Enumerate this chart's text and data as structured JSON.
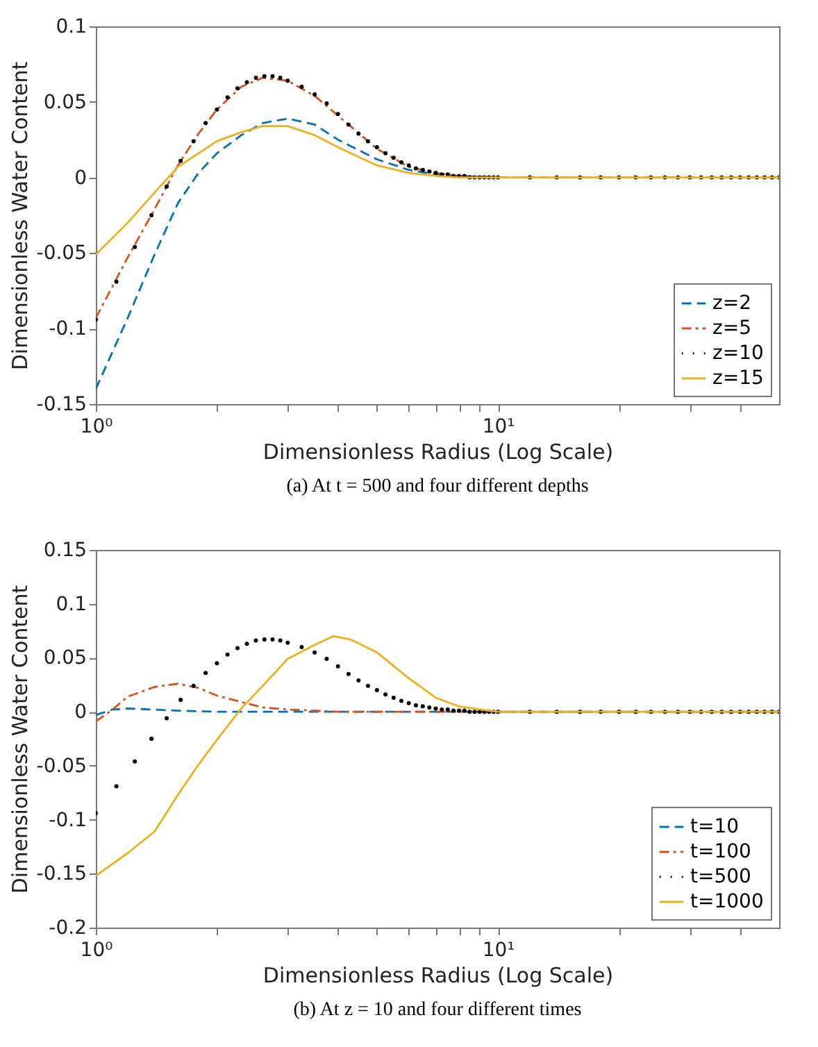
{
  "chart_data": [
    {
      "type": "line",
      "title": "(a) At t = 500 and four different depths",
      "xlabel": "Dimensionless Radius (Log Scale)",
      "ylabel": "Dimensionless Water Content",
      "log": "x",
      "xlim": [
        1,
        50
      ],
      "xticks": [
        {
          "value": 1,
          "label": "10⁰"
        },
        {
          "value": 2,
          "label": null
        },
        {
          "value": 3,
          "label": null
        },
        {
          "value": 4,
          "label": null
        },
        {
          "value": 5,
          "label": null
        },
        {
          "value": 6,
          "label": null
        },
        {
          "value": 7,
          "label": null
        },
        {
          "value": 8,
          "label": null
        },
        {
          "value": 9,
          "label": null
        },
        {
          "value": 10,
          "label": "10¹"
        },
        {
          "value": 20,
          "label": null
        },
        {
          "value": 30,
          "label": null
        },
        {
          "value": 40,
          "label": null
        }
      ],
      "ylim": [
        -0.15,
        0.1
      ],
      "yticks": [
        -0.15,
        -0.1,
        -0.05,
        0,
        0.05,
        0.1
      ],
      "legend": "bottom right",
      "x": [
        1,
        1.2,
        1.4,
        1.6,
        1.8,
        2,
        2.3,
        2.6,
        3,
        3.5,
        4,
        5,
        6,
        7,
        8,
        10,
        20,
        50
      ],
      "series": [
        {
          "name": "z=2",
          "color": "#0072bd",
          "line_style": "dashed",
          "values": [
            -0.14,
            -0.093,
            -0.051,
            -0.017,
            0.003,
            0.016,
            0.028,
            0.036,
            0.039,
            0.035,
            0.025,
            0.012,
            0.005,
            0.002,
            0.001,
            0,
            null,
            null
          ]
        },
        {
          "name": "z=5",
          "color": "#d95319",
          "line_style": "dashdot",
          "values": [
            -0.093,
            -0.053,
            -0.021,
            0.008,
            0.029,
            0.045,
            0.06,
            0.066,
            0.064,
            0.054,
            0.041,
            0.019,
            0.007,
            0.003,
            0.001,
            0,
            0,
            0
          ]
        },
        {
          "name": "z=10",
          "type": "scatter",
          "color": "#000000",
          "marker": "circle",
          "x": [
            1,
            1.125,
            1.25,
            1.375,
            1.5,
            1.625,
            1.75,
            1.875,
            2,
            2.125,
            2.25,
            2.375,
            2.5,
            2.625,
            2.75,
            2.875,
            3,
            3.25,
            3.5,
            3.75,
            4,
            4.25,
            4.5,
            4.75,
            5,
            5.25,
            5.5,
            5.75,
            6,
            6.25,
            6.5,
            6.75,
            7,
            7.25,
            7.5,
            7.75,
            8,
            8.25,
            8.5,
            8.75,
            9,
            9.25,
            9.5,
            9.75,
            10,
            12,
            14,
            16,
            18,
            20,
            22,
            24,
            26,
            28,
            30,
            32,
            34,
            36,
            38,
            40,
            42,
            44,
            46,
            48,
            50
          ],
          "values": [
            -0.094,
            -0.069,
            -0.046,
            -0.025,
            -0.006,
            0.011,
            0.024,
            0.036,
            0.045,
            0.053,
            0.059,
            0.063,
            0.066,
            0.067,
            0.067,
            0.066,
            0.064,
            0.06,
            0.055,
            0.049,
            0.042,
            0.035,
            0.029,
            0.024,
            0.02,
            0.016,
            0.013,
            0.01,
            0.008,
            0.006,
            0.005,
            0.004,
            0.003,
            0.002,
            0.002,
            0.001,
            0.001,
            0.001,
            0,
            0,
            0,
            0,
            0,
            0,
            0,
            0,
            0,
            0,
            0,
            0,
            0,
            0,
            0,
            0,
            0,
            0,
            0,
            0,
            0,
            0,
            0,
            0,
            0,
            0,
            0
          ]
        },
        {
          "name": "z=15",
          "color": "#edb120",
          "line_style": "solid",
          "values": [
            -0.051,
            -0.03,
            -0.01,
            0.007,
            0.016,
            0.024,
            0.03,
            0.034,
            0.034,
            0.028,
            0.02,
            0.008,
            0.003,
            0.001,
            0,
            0,
            0,
            0
          ]
        }
      ]
    },
    {
      "type": "line",
      "title": "(b) At z = 10 and four different times",
      "xlabel": "Dimensionless Radius (Log Scale)",
      "ylabel": "Dimensionless Water Content",
      "log": "x",
      "xlim": [
        1,
        50
      ],
      "xticks": [
        {
          "value": 1,
          "label": "10⁰"
        },
        {
          "value": 2,
          "label": null
        },
        {
          "value": 3,
          "label": null
        },
        {
          "value": 4,
          "label": null
        },
        {
          "value": 5,
          "label": null
        },
        {
          "value": 6,
          "label": null
        },
        {
          "value": 7,
          "label": null
        },
        {
          "value": 8,
          "label": null
        },
        {
          "value": 9,
          "label": null
        },
        {
          "value": 10,
          "label": "10¹"
        },
        {
          "value": 20,
          "label": null
        },
        {
          "value": 30,
          "label": null
        },
        {
          "value": 40,
          "label": null
        }
      ],
      "ylim": [
        -0.2,
        0.15
      ],
      "yticks": [
        -0.2,
        -0.15,
        -0.1,
        -0.05,
        0,
        0.05,
        0.1,
        0.15
      ],
      "legend": "bottom right",
      "series": [
        {
          "name": "t=10",
          "color": "#0072bd",
          "line_style": "dashed",
          "x": [
            1,
            1.1,
            1.2,
            1.4,
            1.6,
            2,
            3,
            10,
            50
          ],
          "values": [
            -0.003,
            0.002,
            0.003,
            0.002,
            0.001,
            0,
            0,
            0,
            0
          ]
        },
        {
          "name": "t=100",
          "color": "#d95319",
          "line_style": "dashdot",
          "x": [
            1,
            1.1,
            1.2,
            1.4,
            1.6,
            1.8,
            2,
            2.3,
            2.6,
            3,
            3.5,
            4,
            10,
            50
          ],
          "values": [
            -0.009,
            0.002,
            0.014,
            0.023,
            0.026,
            0.022,
            0.015,
            0.009,
            0.004,
            0.002,
            0.001,
            0,
            0,
            0
          ]
        },
        {
          "name": "t=500",
          "type": "scatter",
          "color": "#000000",
          "marker": "circle",
          "x": [
            1,
            1.125,
            1.25,
            1.375,
            1.5,
            1.625,
            1.75,
            1.875,
            2,
            2.125,
            2.25,
            2.375,
            2.5,
            2.625,
            2.75,
            2.875,
            3,
            3.25,
            3.5,
            3.75,
            4,
            4.25,
            4.5,
            4.75,
            5,
            5.25,
            5.5,
            5.75,
            6,
            6.25,
            6.5,
            6.75,
            7,
            7.25,
            7.5,
            7.75,
            8,
            8.25,
            8.5,
            8.75,
            9,
            9.25,
            9.5,
            9.75,
            10,
            12,
            14,
            16,
            18,
            20,
            22,
            24,
            26,
            28,
            30,
            32,
            34,
            36,
            38,
            40,
            42,
            44,
            46,
            48,
            50
          ],
          "values": [
            -0.094,
            -0.069,
            -0.046,
            -0.025,
            -0.006,
            0.011,
            0.024,
            0.036,
            0.045,
            0.053,
            0.059,
            0.063,
            0.066,
            0.067,
            0.067,
            0.066,
            0.064,
            0.06,
            0.055,
            0.049,
            0.042,
            0.035,
            0.029,
            0.024,
            0.02,
            0.016,
            0.013,
            0.01,
            0.008,
            0.006,
            0.005,
            0.004,
            0.003,
            0.002,
            0.002,
            0.001,
            0.001,
            0.001,
            0,
            0,
            0,
            0,
            0,
            0,
            0,
            0,
            0,
            0,
            0,
            0,
            0,
            0,
            0,
            0,
            0,
            0,
            0,
            0,
            0,
            0,
            0,
            0,
            0,
            0,
            0
          ]
        },
        {
          "name": "t=1000",
          "color": "#edb120",
          "line_style": "solid",
          "x": [
            1,
            1.2,
            1.4,
            1.6,
            1.8,
            2,
            2.3,
            2.6,
            3,
            3.5,
            3.9,
            4.3,
            5,
            6,
            7,
            8,
            9.5,
            10,
            20,
            50
          ],
          "values": [
            -0.152,
            -0.131,
            -0.111,
            -0.077,
            -0.049,
            -0.026,
            0.003,
            0.024,
            0.049,
            0.062,
            0.07,
            0.067,
            0.055,
            0.031,
            0.013,
            0.005,
            0.001,
            0,
            0,
            0
          ]
        }
      ]
    }
  ]
}
